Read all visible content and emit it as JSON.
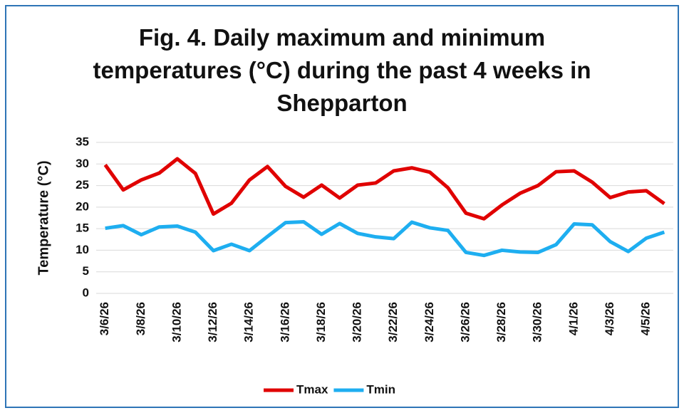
{
  "chart_data": {
    "type": "line",
    "title": "Fig. 4. Daily maximum and minimum temperatures (°C) during the past 4 weeks in Shepparton",
    "ylabel": "Temperature (°C)",
    "categories": [
      "3/6/26",
      null,
      "3/8/26",
      null,
      "3/10/26",
      null,
      "3/12/26",
      null,
      "3/14/26",
      null,
      "3/16/26",
      null,
      "3/18/26",
      null,
      "3/20/26",
      null,
      "3/22/26",
      null,
      "3/24/26",
      null,
      "3/26/26",
      null,
      "3/28/26",
      null,
      "3/30/26",
      null,
      "4/1/26",
      null,
      "4/3/26",
      null,
      "4/5/26",
      null
    ],
    "series": [
      {
        "name": "Tmax",
        "color": "#e00000",
        "values": [
          29.8,
          24,
          26.3,
          27.9,
          31.2,
          27.8,
          18.4,
          20.9,
          26.3,
          29.4,
          24.8,
          22.3,
          25.1,
          22.1,
          25.1,
          25.6,
          28.4,
          29.1,
          28.1,
          24.5,
          18.6,
          17.3,
          20.5,
          23.2,
          25,
          28.2,
          28.4,
          25.8,
          22.2,
          23.5,
          23.8,
          20.8
        ]
      },
      {
        "name": "Tmin",
        "color": "#1eaef0",
        "values": [
          15.1,
          15.7,
          13.6,
          15.4,
          15.6,
          14.2,
          9.9,
          11.4,
          9.9,
          13.2,
          16.4,
          16.6,
          13.7,
          16.2,
          13.9,
          13.1,
          12.7,
          16.5,
          15.2,
          14.6,
          9.5,
          8.8,
          10,
          9.6,
          9.5,
          11.3,
          16.1,
          15.9,
          12,
          9.7,
          12.8,
          14.2
        ]
      }
    ],
    "ylim": [
      0,
      35
    ],
    "yticks": [
      0,
      5,
      10,
      15,
      20,
      25,
      30,
      35
    ],
    "grid": true,
    "legend": "bottom"
  }
}
